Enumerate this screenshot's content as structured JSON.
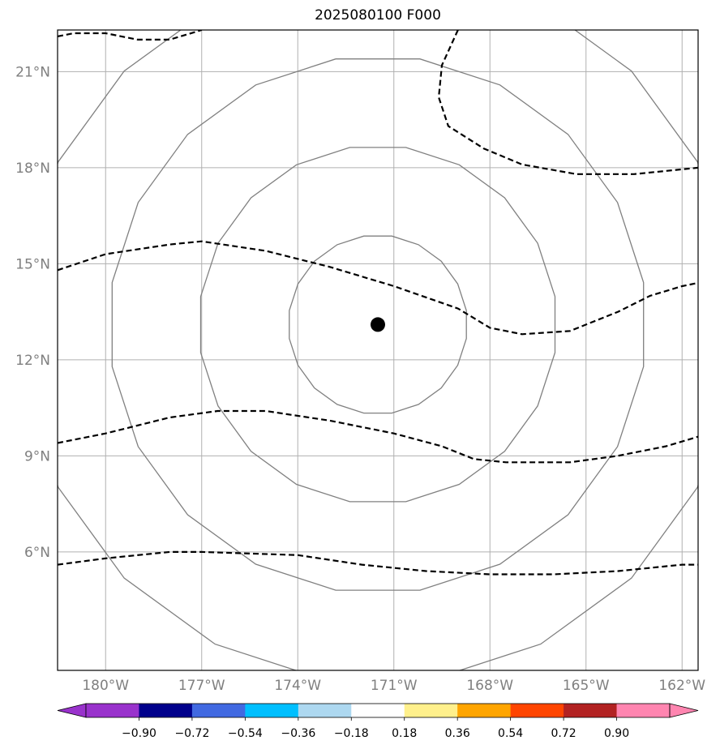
{
  "title": "2025080100 F000",
  "map": {
    "lon_range": [
      -181.5,
      -161.5
    ],
    "lat_range": [
      2.3,
      22.3
    ],
    "lon_ticks": [
      {
        "value": -180,
        "label": "180°W"
      },
      {
        "value": -177,
        "label": "177°W"
      },
      {
        "value": -174,
        "label": "174°W"
      },
      {
        "value": -171,
        "label": "171°W"
      },
      {
        "value": -168,
        "label": "168°W"
      },
      {
        "value": -165,
        "label": "165°W"
      },
      {
        "value": -162,
        "label": "162°W"
      }
    ],
    "lat_ticks": [
      {
        "value": 6,
        "label": "6°N"
      },
      {
        "value": 9,
        "label": "9°N"
      },
      {
        "value": 12,
        "label": "12°N"
      },
      {
        "value": 15,
        "label": "15°N"
      },
      {
        "value": 18,
        "label": "18°N"
      },
      {
        "value": 21,
        "label": "21°N"
      }
    ],
    "gridlines": true,
    "center_marker": {
      "lon": -171.5,
      "lat": 13.1
    },
    "range_ring_radii_deg": [
      2.8,
      5.6,
      8.4,
      11.2
    ],
    "colors": {
      "ring": "#808080",
      "grid": "#b0b0b0",
      "contour": "#000000",
      "marker": "#000000"
    },
    "dashed_contours": [
      [
        [
          -181.5,
          22.1
        ],
        [
          -181,
          22.2
        ],
        [
          -180,
          22.2
        ],
        [
          -179,
          22
        ],
        [
          -178,
          22
        ],
        [
          -177,
          22.3
        ]
      ],
      [
        [
          -169,
          22.3
        ],
        [
          -169.5,
          21.2
        ],
        [
          -169.6,
          20.2
        ],
        [
          -169.3,
          19.3
        ],
        [
          -168.2,
          18.6
        ],
        [
          -167,
          18.1
        ],
        [
          -165.3,
          17.8
        ],
        [
          -163.5,
          17.8
        ],
        [
          -161.5,
          18
        ]
      ],
      [
        [
          -181.5,
          14.8
        ],
        [
          -180,
          15.3
        ],
        [
          -178,
          15.6
        ],
        [
          -177,
          15.7
        ],
        [
          -175,
          15.4
        ],
        [
          -173,
          14.9
        ],
        [
          -171,
          14.3
        ],
        [
          -169,
          13.6
        ],
        [
          -168,
          13
        ],
        [
          -167,
          12.8
        ],
        [
          -165.5,
          12.9
        ],
        [
          -164,
          13.5
        ],
        [
          -163,
          14
        ],
        [
          -162,
          14.3
        ],
        [
          -161.5,
          14.4
        ]
      ],
      [
        [
          -181.5,
          9.4
        ],
        [
          -180,
          9.7
        ],
        [
          -178,
          10.2
        ],
        [
          -176.5,
          10.4
        ],
        [
          -175,
          10.4
        ],
        [
          -173,
          10.1
        ],
        [
          -171,
          9.7
        ],
        [
          -169.5,
          9.3
        ],
        [
          -168.5,
          8.9
        ],
        [
          -167.5,
          8.8
        ],
        [
          -165.5,
          8.8
        ],
        [
          -164,
          9
        ],
        [
          -162.5,
          9.3
        ],
        [
          -161.5,
          9.6
        ]
      ],
      [
        [
          -181.5,
          5.6
        ],
        [
          -180,
          5.8
        ],
        [
          -178,
          6
        ],
        [
          -177,
          6
        ],
        [
          -174,
          5.9
        ],
        [
          -172,
          5.6
        ],
        [
          -170,
          5.4
        ],
        [
          -168,
          5.3
        ],
        [
          -166,
          5.3
        ],
        [
          -164,
          5.4
        ],
        [
          -162,
          5.6
        ],
        [
          -161.5,
          5.6
        ]
      ]
    ]
  },
  "colorbar": {
    "colors": [
      "#9932cc",
      "#00008b",
      "#4169e1",
      "#00bfff",
      "#add8f0",
      "#ffffff",
      "#fff08c",
      "#ffa500",
      "#ff4500",
      "#b22222",
      "#ff85b0"
    ],
    "ticks": [
      "−0.90",
      "−0.72",
      "−0.54",
      "−0.36",
      "−0.18",
      "0.18",
      "0.36",
      "0.54",
      "0.72",
      "0.90"
    ]
  }
}
